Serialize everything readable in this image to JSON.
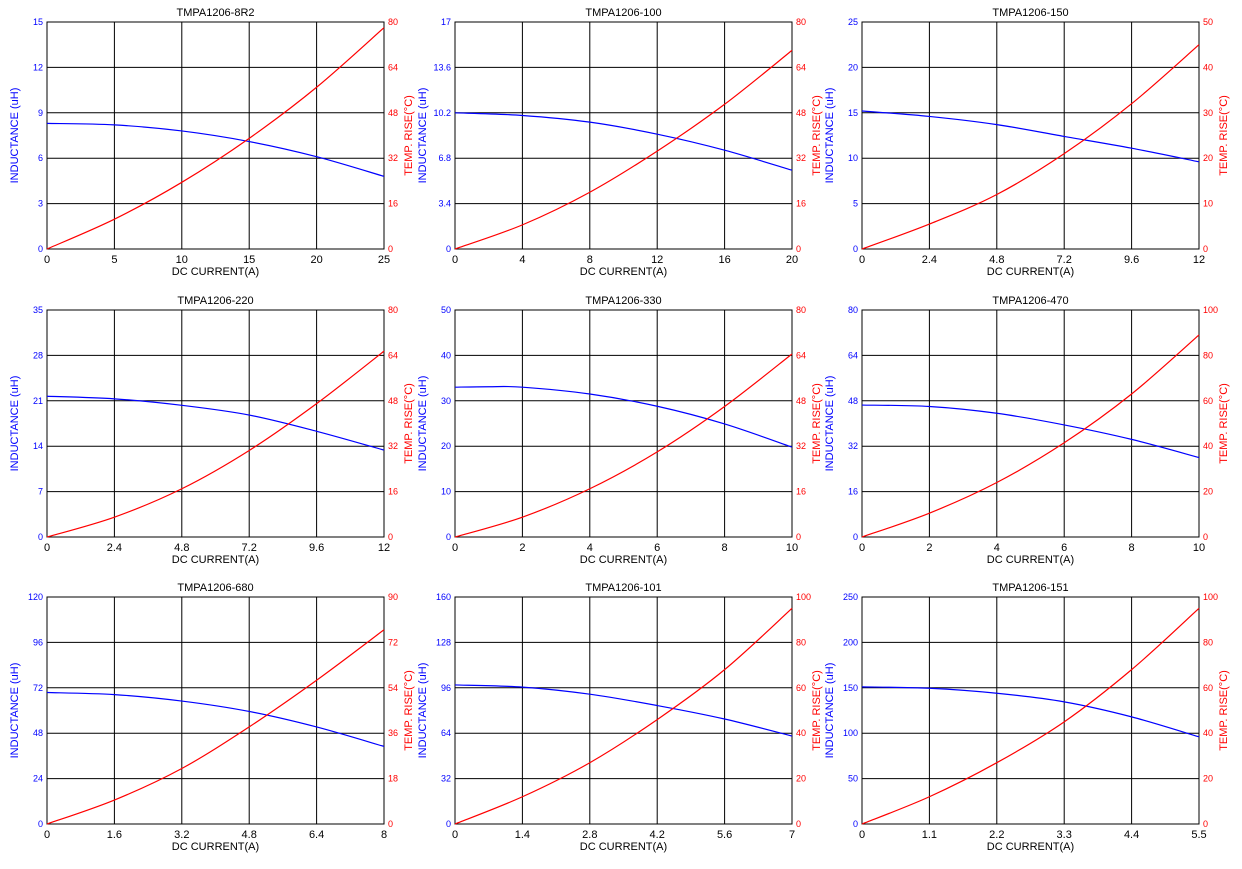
{
  "colors": {
    "inductance": "#0000ff",
    "temp_rise": "#ff0000",
    "grid": "#000000"
  },
  "chart_data": [
    {
      "type": "line",
      "title": "TMPA1206-8R2",
      "xlabel": "DC CURRENT(A)",
      "ylabel": "INDUCTANCE (uH)",
      "y2label": "TEMP. RISE(°C)",
      "xlim": [
        0,
        25
      ],
      "xticks": [
        "0",
        "5",
        "10",
        "15",
        "20",
        "25"
      ],
      "ylim": [
        0,
        15
      ],
      "yticks": [
        "0",
        "3",
        "6",
        "9",
        "12",
        "15"
      ],
      "y2lim": [
        0,
        80
      ],
      "y2ticks": [
        "0",
        "16",
        "32",
        "48",
        "64",
        "80"
      ],
      "grid": true,
      "series": [
        {
          "axis": "left",
          "color": "#0000ff",
          "x": [
            0,
            5,
            10,
            15,
            20,
            25
          ],
          "y": [
            8.3,
            8.2,
            7.8,
            7.1,
            6.1,
            4.8
          ]
        },
        {
          "axis": "right",
          "color": "#ff0000",
          "x": [
            0,
            5,
            10,
            15,
            20,
            25
          ],
          "y": [
            0,
            10.5,
            23.5,
            39,
            57,
            78
          ]
        }
      ]
    },
    {
      "type": "line",
      "title": "TMPA1206-100",
      "xlabel": "DC CURRENT(A)",
      "ylabel": "INDUCTANCE (uH)",
      "y2label": "TEMP. RISE(°C)",
      "xlim": [
        0,
        20
      ],
      "xticks": [
        "0",
        "4",
        "8",
        "12",
        "16",
        "20"
      ],
      "ylim": [
        0,
        17
      ],
      "yticks": [
        "0",
        "3.4",
        "6.8",
        "10.2",
        "13.6",
        "17"
      ],
      "y2lim": [
        0,
        80
      ],
      "y2ticks": [
        "0",
        "16",
        "32",
        "48",
        "64",
        "80"
      ],
      "grid": true,
      "series": [
        {
          "axis": "left",
          "color": "#0000ff",
          "x": [
            0,
            4,
            8,
            12,
            16,
            20
          ],
          "y": [
            10.2,
            10.0,
            9.5,
            8.6,
            7.4,
            5.9
          ]
        },
        {
          "axis": "right",
          "color": "#ff0000",
          "x": [
            0,
            4,
            8,
            12,
            16,
            20
          ],
          "y": [
            0,
            8.5,
            20,
            34.5,
            51,
            70
          ]
        }
      ]
    },
    {
      "type": "line",
      "title": "TMPA1206-150",
      "xlabel": "DC CURRENT(A)",
      "ylabel": "INDUCTANCE (uH)",
      "y2label": "TEMP. RISE(°C)",
      "xlim": [
        0,
        12
      ],
      "xticks": [
        "0",
        "2.4",
        "4.8",
        "7.2",
        "9.6",
        "12"
      ],
      "ylim": [
        0,
        25
      ],
      "yticks": [
        "0",
        "5",
        "10",
        "15",
        "20",
        "25"
      ],
      "y2lim": [
        0,
        50
      ],
      "y2ticks": [
        "0",
        "10",
        "20",
        "30",
        "40",
        "50"
      ],
      "grid": true,
      "series": [
        {
          "axis": "left",
          "color": "#0000ff",
          "x": [
            0,
            2.4,
            4.8,
            7.2,
            9.6,
            12
          ],
          "y": [
            15.2,
            14.6,
            13.7,
            12.4,
            11.1,
            9.6
          ]
        },
        {
          "axis": "right",
          "color": "#ff0000",
          "x": [
            0,
            2.4,
            4.8,
            7.2,
            9.6,
            12
          ],
          "y": [
            0,
            5.5,
            12,
            21,
            32,
            45
          ]
        }
      ]
    },
    {
      "type": "line",
      "title": "TMPA1206-220",
      "xlabel": "DC CURRENT(A)",
      "ylabel": "INDUCTANCE (uH)",
      "y2label": "TEMP. RISE(°C)",
      "xlim": [
        0,
        12
      ],
      "xticks": [
        "0",
        "2.4",
        "4.8",
        "7.2",
        "9.6",
        "12"
      ],
      "ylim": [
        0,
        35
      ],
      "yticks": [
        "0",
        "7",
        "14",
        "21",
        "28",
        "35"
      ],
      "y2lim": [
        0,
        80
      ],
      "y2ticks": [
        "0",
        "16",
        "32",
        "48",
        "64",
        "80"
      ],
      "grid": true,
      "series": [
        {
          "axis": "left",
          "color": "#0000ff",
          "x": [
            0,
            2.4,
            4.8,
            7.2,
            9.6,
            12
          ],
          "y": [
            21.7,
            21.3,
            20.3,
            18.8,
            16.3,
            13.4
          ]
        },
        {
          "axis": "right",
          "color": "#ff0000",
          "x": [
            0,
            2.4,
            4.8,
            7.2,
            9.6,
            12
          ],
          "y": [
            0,
            7,
            17,
            30.5,
            47,
            65.5
          ]
        }
      ]
    },
    {
      "type": "line",
      "title": "TMPA1206-330",
      "xlabel": "DC CURRENT(A)",
      "ylabel": "INDUCTANCE (uH)",
      "y2label": "TEMP. RISE(°C)",
      "xlim": [
        0,
        10
      ],
      "xticks": [
        "0",
        "2",
        "4",
        "6",
        "8",
        "10"
      ],
      "ylim": [
        0,
        50
      ],
      "yticks": [
        "0",
        "10",
        "20",
        "30",
        "40",
        "50"
      ],
      "y2lim": [
        0,
        80
      ],
      "y2ticks": [
        "0",
        "16",
        "32",
        "48",
        "64",
        "80"
      ],
      "grid": true,
      "series": [
        {
          "axis": "left",
          "color": "#0000ff",
          "x": [
            0,
            1,
            2,
            4,
            6,
            8,
            10
          ],
          "y": [
            33,
            33.1,
            33,
            31.5,
            28.8,
            24.9,
            19.8
          ]
        },
        {
          "axis": "right",
          "color": "#ff0000",
          "x": [
            0,
            2,
            4,
            6,
            8,
            10
          ],
          "y": [
            0,
            7,
            17,
            30,
            46,
            64.5
          ]
        }
      ]
    },
    {
      "type": "line",
      "title": "TMPA1206-470",
      "xlabel": "DC CURRENT(A)",
      "ylabel": "INDUCTANCE (uH)",
      "y2label": "TEMP. RISE(°C)",
      "xlim": [
        0,
        10
      ],
      "xticks": [
        "0",
        "2",
        "4",
        "6",
        "8",
        "10"
      ],
      "ylim": [
        0,
        80
      ],
      "yticks": [
        "0",
        "16",
        "32",
        "48",
        "64",
        "80"
      ],
      "y2lim": [
        0,
        100
      ],
      "y2ticks": [
        "0",
        "20",
        "40",
        "60",
        "80",
        "100"
      ],
      "grid": true,
      "series": [
        {
          "axis": "left",
          "color": "#0000ff",
          "x": [
            0,
            2,
            4,
            6,
            8,
            10
          ],
          "y": [
            46.5,
            46,
            43.6,
            39.5,
            34.4,
            28
          ]
        },
        {
          "axis": "right",
          "color": "#ff0000",
          "x": [
            0,
            2,
            4,
            6,
            8,
            10
          ],
          "y": [
            0,
            10.5,
            24,
            41.5,
            63,
            89
          ]
        }
      ]
    },
    {
      "type": "line",
      "title": "TMPA1206-680",
      "xlabel": "DC CURRENT(A)",
      "ylabel": "INDUCTANCE (uH)",
      "y2label": "TEMP. RISE(°C)",
      "xlim": [
        0,
        8
      ],
      "xticks": [
        "0",
        "1.6",
        "3.2",
        "4.8",
        "6.4",
        "8"
      ],
      "ylim": [
        0,
        120
      ],
      "yticks": [
        "0",
        "24",
        "48",
        "72",
        "96",
        "120"
      ],
      "y2lim": [
        0,
        90
      ],
      "y2ticks": [
        "0",
        "18",
        "36",
        "54",
        "72",
        "90"
      ],
      "grid": true,
      "series": [
        {
          "axis": "left",
          "color": "#0000ff",
          "x": [
            0,
            1.6,
            3.2,
            4.8,
            6.4,
            8
          ],
          "y": [
            69.5,
            68.4,
            65,
            59.5,
            51.3,
            41
          ]
        },
        {
          "axis": "right",
          "color": "#ff0000",
          "x": [
            0,
            1.6,
            3.2,
            4.8,
            6.4,
            8
          ],
          "y": [
            0,
            9.5,
            22,
            38.5,
            57,
            77
          ]
        }
      ]
    },
    {
      "type": "line",
      "title": "TMPA1206-101",
      "xlabel": "DC CURRENT(A)",
      "ylabel": "INDUCTANCE (uH)",
      "y2label": "TEMP. RISE(°C)",
      "xlim": [
        0,
        7
      ],
      "xticks": [
        "0",
        "1.4",
        "2.8",
        "4.2",
        "5.6",
        "7"
      ],
      "ylim": [
        0,
        160
      ],
      "yticks": [
        "0",
        "32",
        "64",
        "96",
        "128",
        "160"
      ],
      "y2lim": [
        0,
        100
      ],
      "y2ticks": [
        "0",
        "20",
        "40",
        "60",
        "80",
        "100"
      ],
      "grid": true,
      "series": [
        {
          "axis": "left",
          "color": "#0000ff",
          "x": [
            0,
            1.4,
            2.8,
            4.2,
            5.6,
            7
          ],
          "y": [
            98,
            96.5,
            91.5,
            83.5,
            74,
            62
          ]
        },
        {
          "axis": "right",
          "color": "#ff0000",
          "x": [
            0,
            1.4,
            2.8,
            4.2,
            5.6,
            7
          ],
          "y": [
            0,
            12,
            27,
            46,
            68,
            95
          ]
        }
      ]
    },
    {
      "type": "line",
      "title": "TMPA1206-151",
      "xlabel": "DC CURRENT(A)",
      "ylabel": "INDUCTANCE (uH)",
      "y2label": "TEMP. RISE(°C)",
      "xlim": [
        0,
        5.5
      ],
      "xticks": [
        "0",
        "1.1",
        "2.2",
        "3.3",
        "4.4",
        "5.5"
      ],
      "ylim": [
        0,
        250
      ],
      "yticks": [
        "0",
        "50",
        "100",
        "150",
        "200",
        "250"
      ],
      "y2lim": [
        0,
        100
      ],
      "y2ticks": [
        "0",
        "20",
        "40",
        "60",
        "80",
        "100"
      ],
      "grid": true,
      "series": [
        {
          "axis": "left",
          "color": "#0000ff",
          "x": [
            0,
            1.1,
            2.2,
            3.3,
            4.4,
            5.5
          ],
          "y": [
            151,
            149.5,
            144,
            134.5,
            118,
            96
          ]
        },
        {
          "axis": "right",
          "color": "#ff0000",
          "x": [
            0,
            1.1,
            2.2,
            3.3,
            4.4,
            5.5
          ],
          "y": [
            0,
            12,
            27,
            45,
            68,
            95
          ]
        }
      ]
    }
  ]
}
